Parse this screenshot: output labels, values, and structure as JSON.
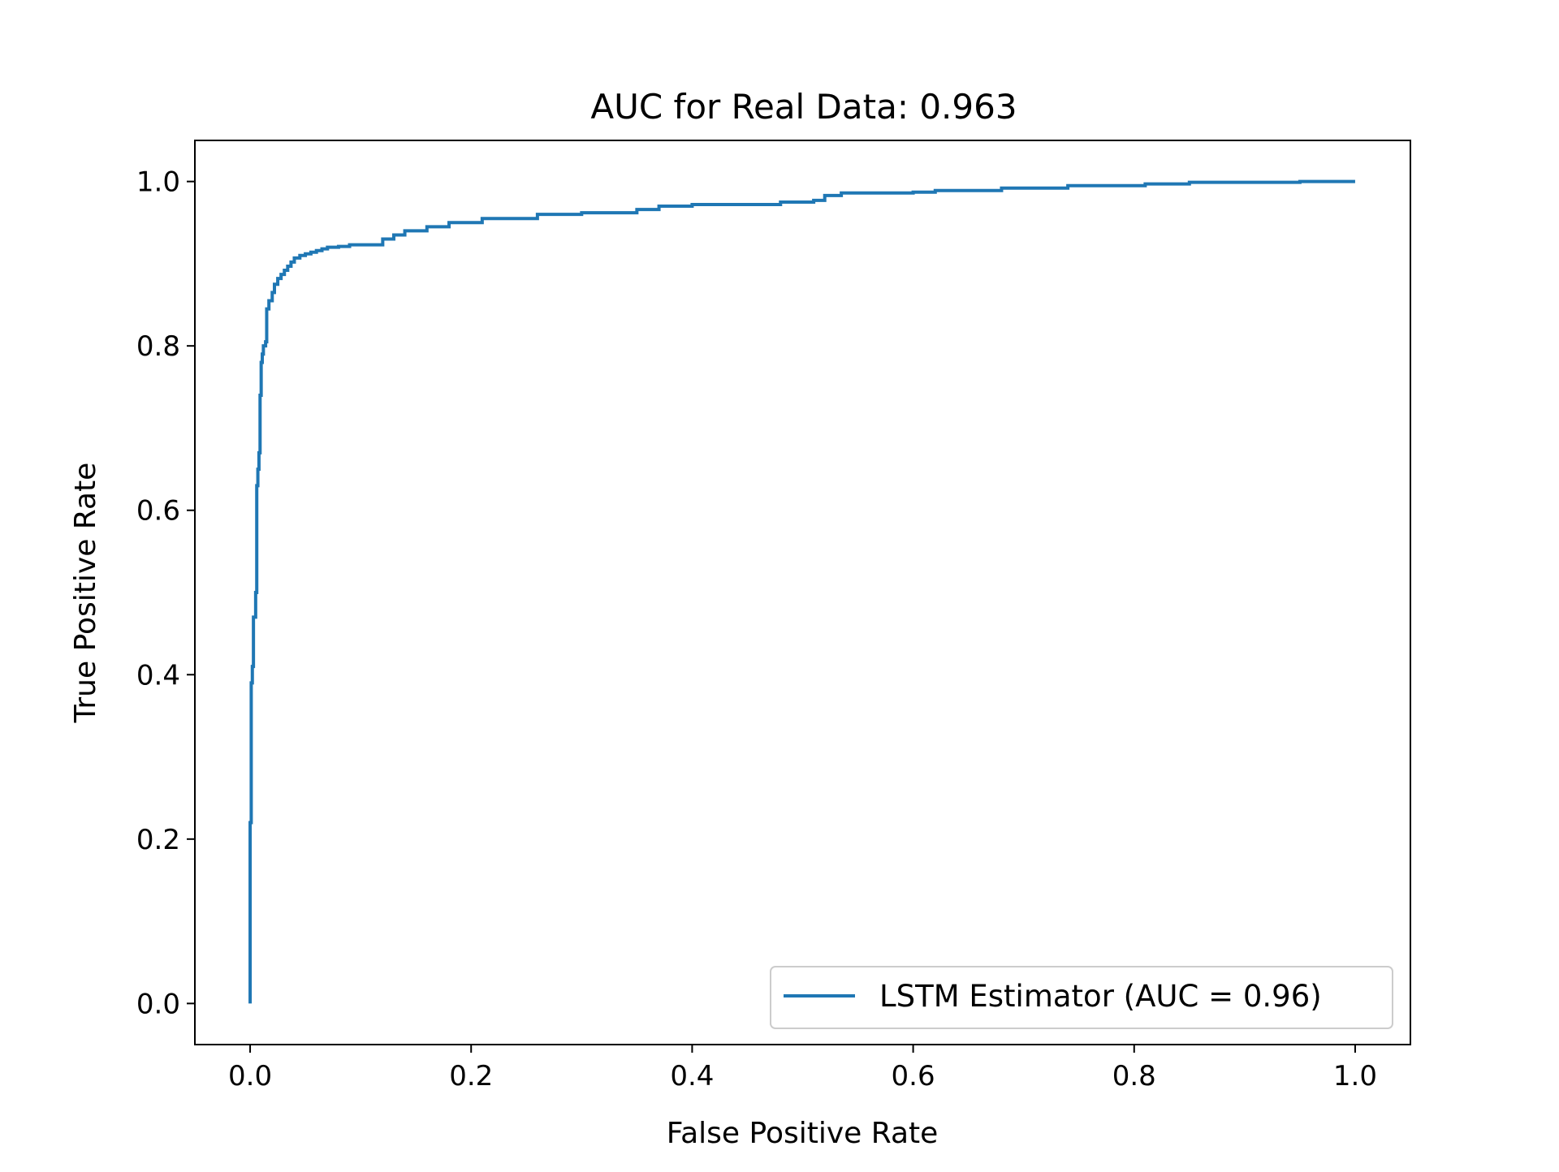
{
  "chart_data": {
    "type": "line",
    "title": "AUC for Real Data: 0.963",
    "xlabel": "False Positive Rate",
    "ylabel": "True Positive Rate",
    "xlim": [
      -0.05,
      1.05
    ],
    "ylim": [
      -0.05,
      1.05
    ],
    "xticks": [
      0.0,
      0.2,
      0.4,
      0.6,
      0.8,
      1.0
    ],
    "xtick_labels": [
      "0.0",
      "0.2",
      "0.4",
      "0.6",
      "0.8",
      "1.0"
    ],
    "yticks": [
      0.0,
      0.2,
      0.4,
      0.6,
      0.8,
      1.0
    ],
    "ytick_labels": [
      "0.0",
      "0.2",
      "0.4",
      "0.6",
      "0.8",
      "1.0"
    ],
    "grid": false,
    "legend_position": "lower-right",
    "series": [
      {
        "name": "LSTM Estimator (AUC = 0.96)",
        "color": "#1f77b4",
        "x": [
          0.0,
          0.0,
          0.001,
          0.001,
          0.002,
          0.002,
          0.003,
          0.003,
          0.005,
          0.005,
          0.006,
          0.006,
          0.007,
          0.007,
          0.008,
          0.008,
          0.009,
          0.009,
          0.01,
          0.01,
          0.011,
          0.011,
          0.012,
          0.012,
          0.014,
          0.014,
          0.015,
          0.015,
          0.017,
          0.017,
          0.02,
          0.02,
          0.022,
          0.022,
          0.025,
          0.025,
          0.028,
          0.028,
          0.031,
          0.031,
          0.034,
          0.034,
          0.037,
          0.037,
          0.04,
          0.04,
          0.045,
          0.045,
          0.05,
          0.05,
          0.055,
          0.055,
          0.06,
          0.06,
          0.065,
          0.065,
          0.07,
          0.07,
          0.08,
          0.08,
          0.09,
          0.09,
          0.12,
          0.12,
          0.13,
          0.13,
          0.14,
          0.14,
          0.16,
          0.16,
          0.18,
          0.18,
          0.21,
          0.21,
          0.26,
          0.26,
          0.3,
          0.3,
          0.35,
          0.35,
          0.37,
          0.37,
          0.4,
          0.4,
          0.48,
          0.48,
          0.51,
          0.51,
          0.52,
          0.52,
          0.535,
          0.535,
          0.6,
          0.6,
          0.62,
          0.62,
          0.68,
          0.68,
          0.74,
          0.74,
          0.81,
          0.81,
          0.85,
          0.85,
          0.95,
          0.95,
          1.0
        ],
        "y": [
          0.0,
          0.22,
          0.22,
          0.39,
          0.39,
          0.41,
          0.41,
          0.47,
          0.47,
          0.5,
          0.5,
          0.63,
          0.63,
          0.65,
          0.65,
          0.67,
          0.67,
          0.74,
          0.74,
          0.78,
          0.78,
          0.79,
          0.79,
          0.8,
          0.8,
          0.805,
          0.805,
          0.845,
          0.845,
          0.855,
          0.855,
          0.865,
          0.865,
          0.875,
          0.875,
          0.882,
          0.882,
          0.887,
          0.887,
          0.892,
          0.892,
          0.897,
          0.897,
          0.902,
          0.902,
          0.907,
          0.907,
          0.91,
          0.91,
          0.912,
          0.912,
          0.914,
          0.914,
          0.916,
          0.916,
          0.918,
          0.918,
          0.92,
          0.92,
          0.921,
          0.921,
          0.923,
          0.923,
          0.93,
          0.93,
          0.935,
          0.935,
          0.94,
          0.94,
          0.945,
          0.945,
          0.95,
          0.95,
          0.955,
          0.955,
          0.96,
          0.96,
          0.962,
          0.962,
          0.966,
          0.966,
          0.97,
          0.97,
          0.972,
          0.972,
          0.975,
          0.975,
          0.977,
          0.977,
          0.983,
          0.983,
          0.986,
          0.986,
          0.987,
          0.987,
          0.989,
          0.989,
          0.992,
          0.992,
          0.995,
          0.995,
          0.997,
          0.997,
          0.999,
          0.999,
          1.0,
          1.0
        ]
      }
    ]
  }
}
